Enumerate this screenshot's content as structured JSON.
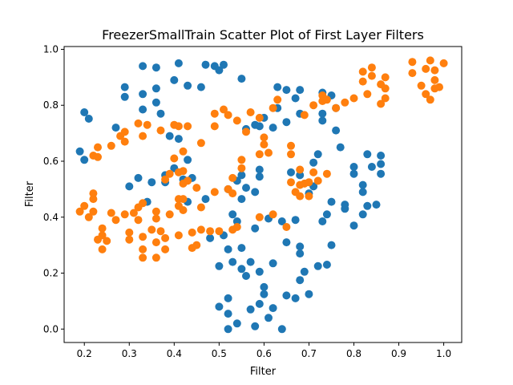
{
  "chart_data": {
    "type": "scatter",
    "title": "FreezerSmallTrain Scatter Plot of First Layer Filters",
    "xlabel": "Filter",
    "ylabel": "Filter",
    "xlim": [
      0.155,
      1.04
    ],
    "ylim": [
      -0.048,
      1.01
    ],
    "xticks": [
      "0.2",
      "0.3",
      "0.4",
      "0.5",
      "0.6",
      "0.7",
      "0.8",
      "0.9",
      "1.0"
    ],
    "yticks": [
      "0.0",
      "0.2",
      "0.4",
      "0.6",
      "0.8",
      "1.0"
    ],
    "grid": false,
    "series": [
      {
        "color": "#1f77b4",
        "points": [
          [
            0.19,
            0.635
          ],
          [
            0.2,
            0.605
          ],
          [
            0.2,
            0.775
          ],
          [
            0.21,
            0.752
          ],
          [
            0.27,
            0.72
          ],
          [
            0.29,
            0.865
          ],
          [
            0.29,
            0.83
          ],
          [
            0.3,
            0.51
          ],
          [
            0.32,
            0.54
          ],
          [
            0.33,
            0.94
          ],
          [
            0.33,
            0.84
          ],
          [
            0.33,
            0.785
          ],
          [
            0.34,
            0.455
          ],
          [
            0.35,
            0.525
          ],
          [
            0.36,
            0.86
          ],
          [
            0.36,
            0.81
          ],
          [
            0.36,
            0.935
          ],
          [
            0.37,
            0.77
          ],
          [
            0.38,
            0.525
          ],
          [
            0.38,
            0.55
          ],
          [
            0.39,
            0.69
          ],
          [
            0.4,
            0.575
          ],
          [
            0.4,
            0.89
          ],
          [
            0.41,
            0.68
          ],
          [
            0.41,
            0.95
          ],
          [
            0.42,
            0.535
          ],
          [
            0.43,
            0.87
          ],
          [
            0.43,
            0.605
          ],
          [
            0.43,
            0.455
          ],
          [
            0.44,
            0.54
          ],
          [
            0.46,
            0.865
          ],
          [
            0.47,
            0.945
          ],
          [
            0.47,
            0.465
          ],
          [
            0.48,
            0.325
          ],
          [
            0.49,
            0.94
          ],
          [
            0.5,
            0.925
          ],
          [
            0.5,
            0.225
          ],
          [
            0.5,
            0.08
          ],
          [
            0.51,
            0.945
          ],
          [
            0.51,
            0.335
          ],
          [
            0.52,
            0.11
          ],
          [
            0.52,
            0.055
          ],
          [
            0.52,
            0.5
          ],
          [
            0.52,
            0.285
          ],
          [
            0.52,
            0.0
          ],
          [
            0.53,
            0.24
          ],
          [
            0.53,
            0.41
          ],
          [
            0.54,
            0.02
          ],
          [
            0.54,
            0.385
          ],
          [
            0.54,
            0.53
          ],
          [
            0.55,
            0.895
          ],
          [
            0.55,
            0.215
          ],
          [
            0.55,
            0.465
          ],
          [
            0.55,
            0.29
          ],
          [
            0.55,
            0.55
          ],
          [
            0.56,
            0.715
          ],
          [
            0.56,
            0.505
          ],
          [
            0.56,
            0.19
          ],
          [
            0.57,
            0.24
          ],
          [
            0.57,
            0.07
          ],
          [
            0.58,
            0.01
          ],
          [
            0.58,
            0.73
          ],
          [
            0.58,
            0.49
          ],
          [
            0.58,
            0.36
          ],
          [
            0.59,
            0.205
          ],
          [
            0.59,
            0.09
          ],
          [
            0.59,
            0.725
          ],
          [
            0.59,
            0.545
          ],
          [
            0.59,
            0.57
          ],
          [
            0.6,
            0.755
          ],
          [
            0.6,
            0.125
          ],
          [
            0.6,
            0.15
          ],
          [
            0.61,
            0.04
          ],
          [
            0.61,
            0.395
          ],
          [
            0.62,
            0.72
          ],
          [
            0.62,
            0.235
          ],
          [
            0.62,
            0.075
          ],
          [
            0.63,
            0.865
          ],
          [
            0.63,
            0.79
          ],
          [
            0.64,
            0.385
          ],
          [
            0.64,
            0.0
          ],
          [
            0.65,
            0.855
          ],
          [
            0.65,
            0.74
          ],
          [
            0.65,
            0.31
          ],
          [
            0.65,
            0.12
          ],
          [
            0.66,
            0.56
          ],
          [
            0.67,
            0.825
          ],
          [
            0.67,
            0.39
          ],
          [
            0.67,
            0.11
          ],
          [
            0.68,
            0.855
          ],
          [
            0.68,
            0.295
          ],
          [
            0.68,
            0.175
          ],
          [
            0.68,
            0.27
          ],
          [
            0.68,
            0.55
          ],
          [
            0.68,
            0.77
          ],
          [
            0.69,
            0.205
          ],
          [
            0.7,
            0.485
          ],
          [
            0.7,
            0.125
          ],
          [
            0.71,
            0.595
          ],
          [
            0.71,
            0.51
          ],
          [
            0.72,
            0.225
          ],
          [
            0.72,
            0.625
          ],
          [
            0.73,
            0.845
          ],
          [
            0.73,
            0.745
          ],
          [
            0.73,
            0.77
          ],
          [
            0.73,
            0.385
          ],
          [
            0.74,
            0.23
          ],
          [
            0.74,
            0.41
          ],
          [
            0.75,
            0.455
          ],
          [
            0.75,
            0.3
          ],
          [
            0.75,
            0.835
          ],
          [
            0.76,
            0.79
          ],
          [
            0.76,
            0.71
          ],
          [
            0.77,
            0.65
          ],
          [
            0.78,
            0.43
          ],
          [
            0.78,
            0.445
          ],
          [
            0.8,
            0.58
          ],
          [
            0.8,
            0.37
          ],
          [
            0.8,
            0.555
          ],
          [
            0.82,
            0.41
          ],
          [
            0.82,
            0.515
          ],
          [
            0.82,
            0.49
          ],
          [
            0.83,
            0.625
          ],
          [
            0.83,
            0.44
          ],
          [
            0.84,
            0.58
          ],
          [
            0.85,
            0.445
          ],
          [
            0.86,
            0.62
          ],
          [
            0.86,
            0.59
          ],
          [
            0.86,
            0.555
          ]
        ]
      },
      {
        "color": "#ff7f0e",
        "points": [
          [
            0.19,
            0.42
          ],
          [
            0.2,
            0.44
          ],
          [
            0.21,
            0.4
          ],
          [
            0.22,
            0.42
          ],
          [
            0.22,
            0.465
          ],
          [
            0.22,
            0.485
          ],
          [
            0.22,
            0.62
          ],
          [
            0.23,
            0.32
          ],
          [
            0.23,
            0.65
          ],
          [
            0.23,
            0.615
          ],
          [
            0.24,
            0.36
          ],
          [
            0.24,
            0.285
          ],
          [
            0.24,
            0.335
          ],
          [
            0.25,
            0.315
          ],
          [
            0.26,
            0.415
          ],
          [
            0.26,
            0.655
          ],
          [
            0.27,
            0.39
          ],
          [
            0.28,
            0.69
          ],
          [
            0.29,
            0.705
          ],
          [
            0.29,
            0.67
          ],
          [
            0.29,
            0.41
          ],
          [
            0.3,
            0.345
          ],
          [
            0.3,
            0.32
          ],
          [
            0.31,
            0.415
          ],
          [
            0.32,
            0.735
          ],
          [
            0.32,
            0.39
          ],
          [
            0.32,
            0.435
          ],
          [
            0.33,
            0.69
          ],
          [
            0.33,
            0.45
          ],
          [
            0.33,
            0.285
          ],
          [
            0.33,
            0.33
          ],
          [
            0.33,
            0.255
          ],
          [
            0.34,
            0.73
          ],
          [
            0.35,
            0.355
          ],
          [
            0.36,
            0.31
          ],
          [
            0.36,
            0.255
          ],
          [
            0.36,
            0.395
          ],
          [
            0.36,
            0.42
          ],
          [
            0.37,
            0.35
          ],
          [
            0.37,
            0.71
          ],
          [
            0.38,
            0.285
          ],
          [
            0.38,
            0.535
          ],
          [
            0.38,
            0.325
          ],
          [
            0.39,
            0.555
          ],
          [
            0.39,
            0.41
          ],
          [
            0.4,
            0.61
          ],
          [
            0.4,
            0.73
          ],
          [
            0.41,
            0.56
          ],
          [
            0.41,
            0.44
          ],
          [
            0.41,
            0.465
          ],
          [
            0.41,
            0.335
          ],
          [
            0.41,
            0.725
          ],
          [
            0.42,
            0.425
          ],
          [
            0.42,
            0.465
          ],
          [
            0.42,
            0.635
          ],
          [
            0.42,
            0.52
          ],
          [
            0.42,
            0.565
          ],
          [
            0.43,
            0.53
          ],
          [
            0.43,
            0.725
          ],
          [
            0.44,
            0.345
          ],
          [
            0.44,
            0.29
          ],
          [
            0.45,
            0.505
          ],
          [
            0.45,
            0.3
          ],
          [
            0.46,
            0.355
          ],
          [
            0.46,
            0.435
          ],
          [
            0.46,
            0.665
          ],
          [
            0.48,
            0.35
          ],
          [
            0.49,
            0.49
          ],
          [
            0.49,
            0.725
          ],
          [
            0.49,
            0.77
          ],
          [
            0.5,
            0.35
          ],
          [
            0.51,
            0.785
          ],
          [
            0.52,
            0.5
          ],
          [
            0.52,
            0.765
          ],
          [
            0.53,
            0.54
          ],
          [
            0.53,
            0.355
          ],
          [
            0.53,
            0.485
          ],
          [
            0.54,
            0.365
          ],
          [
            0.54,
            0.745
          ],
          [
            0.55,
            0.575
          ],
          [
            0.55,
            0.605
          ],
          [
            0.56,
            0.705
          ],
          [
            0.57,
            0.775
          ],
          [
            0.59,
            0.4
          ],
          [
            0.59,
            0.625
          ],
          [
            0.59,
            0.755
          ],
          [
            0.6,
            0.685
          ],
          [
            0.6,
            0.66
          ],
          [
            0.61,
            0.63
          ],
          [
            0.62,
            0.41
          ],
          [
            0.62,
            0.79
          ],
          [
            0.63,
            0.82
          ],
          [
            0.65,
            0.365
          ],
          [
            0.66,
            0.655
          ],
          [
            0.66,
            0.625
          ],
          [
            0.66,
            0.525
          ],
          [
            0.67,
            0.49
          ],
          [
            0.68,
            0.475
          ],
          [
            0.68,
            0.57
          ],
          [
            0.68,
            0.515
          ],
          [
            0.69,
            0.765
          ],
          [
            0.69,
            0.52
          ],
          [
            0.7,
            0.525
          ],
          [
            0.7,
            0.475
          ],
          [
            0.71,
            0.8
          ],
          [
            0.71,
            0.56
          ],
          [
            0.72,
            0.53
          ],
          [
            0.73,
            0.815
          ],
          [
            0.73,
            0.835
          ],
          [
            0.74,
            0.555
          ],
          [
            0.74,
            0.82
          ],
          [
            0.76,
            0.79
          ],
          [
            0.78,
            0.81
          ],
          [
            0.8,
            0.825
          ],
          [
            0.82,
            0.885
          ],
          [
            0.82,
            0.92
          ],
          [
            0.83,
            0.84
          ],
          [
            0.84,
            0.905
          ],
          [
            0.84,
            0.935
          ],
          [
            0.86,
            0.875
          ],
          [
            0.86,
            0.805
          ],
          [
            0.87,
            0.825
          ],
          [
            0.87,
            0.9
          ],
          [
            0.87,
            0.86
          ],
          [
            0.93,
            0.915
          ],
          [
            0.93,
            0.955
          ],
          [
            0.95,
            0.87
          ],
          [
            0.96,
            0.93
          ],
          [
            0.96,
            0.84
          ],
          [
            0.97,
            0.82
          ],
          [
            0.97,
            0.96
          ],
          [
            0.98,
            0.925
          ],
          [
            0.98,
            0.89
          ],
          [
            0.98,
            0.86
          ],
          [
            0.99,
            0.865
          ],
          [
            1.0,
            0.95
          ]
        ]
      }
    ]
  }
}
